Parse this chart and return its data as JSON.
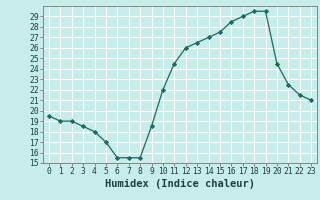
{
  "xlabel": "Humidex (Indice chaleur)",
  "x": [
    0,
    1,
    2,
    3,
    4,
    5,
    6,
    7,
    8,
    9,
    10,
    11,
    12,
    13,
    14,
    15,
    16,
    17,
    18,
    19,
    20,
    21,
    22,
    23
  ],
  "y": [
    19.5,
    19.0,
    19.0,
    18.5,
    18.0,
    17.0,
    15.5,
    15.5,
    15.5,
    18.5,
    22.0,
    24.5,
    26.0,
    26.5,
    27.0,
    27.5,
    28.5,
    29.0,
    29.5,
    29.5,
    24.5,
    22.5,
    21.5,
    21.0
  ],
  "ylim": [
    15,
    30
  ],
  "yticks": [
    15,
    16,
    17,
    18,
    19,
    20,
    21,
    22,
    23,
    24,
    25,
    26,
    27,
    28,
    29
  ],
  "xticks": [
    0,
    1,
    2,
    3,
    4,
    5,
    6,
    7,
    8,
    9,
    10,
    11,
    12,
    13,
    14,
    15,
    16,
    17,
    18,
    19,
    20,
    21,
    22,
    23
  ],
  "line_color": "#1a6b5e",
  "marker": "D",
  "marker_size": 2.2,
  "bg_color": "#c8ecea",
  "grid_color": "#ffffff",
  "axis_color": "#777777",
  "tick_label_fontsize": 5.8,
  "xlabel_fontsize": 7.5
}
